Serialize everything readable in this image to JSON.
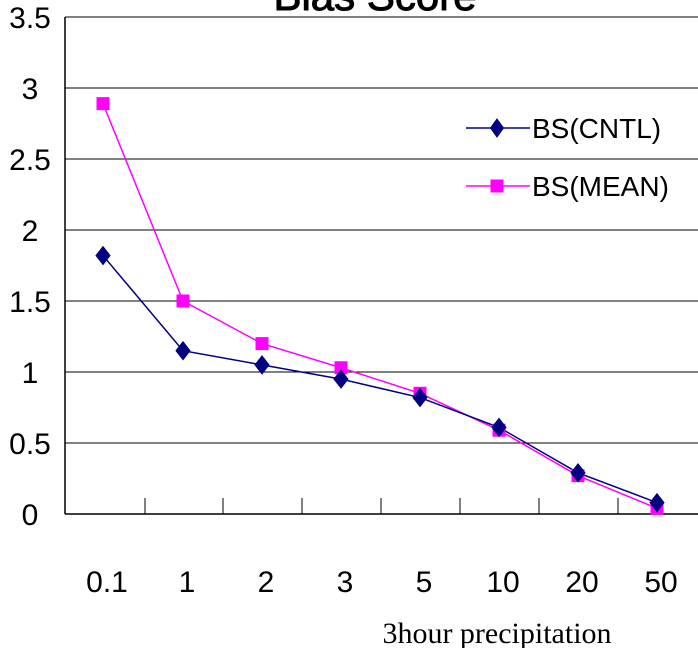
{
  "chart_data": {
    "type": "line",
    "title": "Bias Score",
    "xlabel": "3hour precipitation",
    "ylabel": "",
    "categories": [
      "0.1",
      "1",
      "2",
      "3",
      "5",
      "10",
      "20",
      "50"
    ],
    "yticks": [
      "0",
      "0.5",
      "1",
      "1.5",
      "2",
      "2.5",
      "3",
      "3.5"
    ],
    "ylim": [
      0,
      3.5
    ],
    "grid": "horizontal",
    "legend_position": "right",
    "series": [
      {
        "name": "BS(CNTL)",
        "values": [
          1.82,
          1.15,
          1.05,
          0.95,
          0.82,
          0.61,
          0.29,
          0.08
        ],
        "color": "#000080",
        "marker": "diamond"
      },
      {
        "name": "BS(MEAN)",
        "values": [
          2.89,
          1.5,
          1.2,
          1.03,
          0.85,
          0.59,
          0.27,
          0.04
        ],
        "color": "#ff00ff",
        "marker": "square"
      }
    ]
  }
}
